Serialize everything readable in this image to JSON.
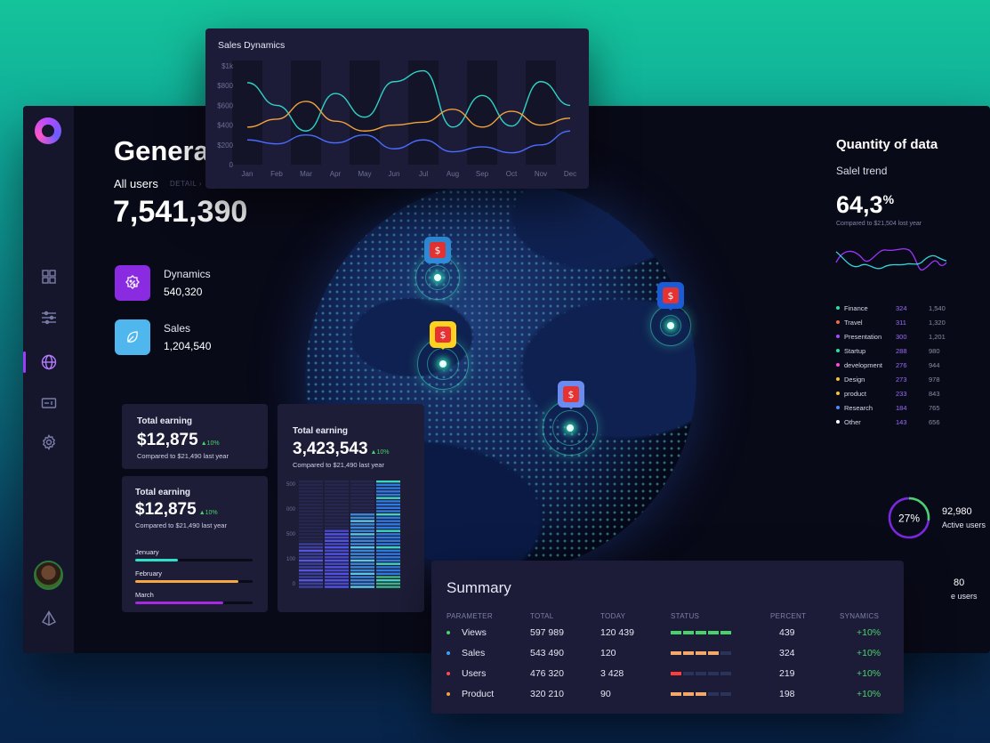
{
  "page": {
    "title": "General",
    "all_users_label": "All users",
    "detail_label": "DETAIL",
    "all_users_value": "7,541,390"
  },
  "sidebar": {
    "items": [
      {
        "icon": "dashboard-icon"
      },
      {
        "icon": "sliders-icon"
      },
      {
        "icon": "globe-icon",
        "active": true
      },
      {
        "icon": "id-card-icon"
      },
      {
        "icon": "gear-icon"
      }
    ],
    "footer_icon": "prism-icon"
  },
  "stats": [
    {
      "label": "Dynamics",
      "value": "540,320",
      "color": "#8a2be2",
      "icon": "percent-badge-icon"
    },
    {
      "label": "Sales",
      "value": "1,204,540",
      "color": "#4fb6ee",
      "icon": "leaf-icon"
    }
  ],
  "earning_cards": [
    {
      "title": "Total earning",
      "value": "$12,875",
      "growth": "▲10%",
      "compare": "Compared to $21,490 last year"
    },
    {
      "title": "Total earning",
      "value": "$12,875",
      "growth": "▲10%",
      "compare": "Compared to $21,490 last year",
      "bars": [
        {
          "label": "Jenuary",
          "progress": 0.36,
          "color": "#2ee0c8"
        },
        {
          "label": "February",
          "progress": 0.88,
          "color": "#f4a742"
        },
        {
          "label": "March",
          "progress": 0.75,
          "color": "#a72ae0"
        }
      ]
    },
    {
      "title": "Total earning",
      "value": "3,423,543",
      "growth": "▲10%",
      "compare": "Compared to $21,490 last year"
    }
  ],
  "heatmap_axis": [
    "1500",
    "1000",
    "500",
    "100",
    "0"
  ],
  "map_pins": [
    {
      "symbol": "$",
      "color": "#2f8ad8"
    },
    {
      "symbol": "$",
      "color": "#ffd21f"
    },
    {
      "symbol": "$",
      "color": "#1a5cd8"
    },
    {
      "symbol": "$",
      "color": "#6a8cf0"
    }
  ],
  "sales_dynamics": {
    "title": "Sales Dynamics"
  },
  "chart_data": {
    "type": "line",
    "title": "Sales Dynamics",
    "categories": [
      "Jan",
      "Feb",
      "Mar",
      "Apr",
      "May",
      "Jun",
      "Jul",
      "Aug",
      "Sep",
      "Oct",
      "Nov",
      "Dec"
    ],
    "yticks": [
      "$1k",
      "$800",
      "$600",
      "$400",
      "$200",
      "0"
    ],
    "ylim": [
      0,
      1000
    ],
    "series": [
      {
        "color": "#2fd3c4",
        "values": [
          830,
          600,
          340,
          720,
          480,
          840,
          950,
          380,
          700,
          390,
          840,
          600
        ]
      },
      {
        "color": "#f3a23c",
        "values": [
          380,
          460,
          640,
          440,
          340,
          400,
          430,
          560,
          380,
          540,
          400,
          470
        ]
      },
      {
        "color": "#4a6cff",
        "values": [
          250,
          210,
          300,
          220,
          300,
          160,
          250,
          130,
          180,
          120,
          200,
          340
        ]
      }
    ]
  },
  "quantity": {
    "title": "Quantity of data",
    "subtitle": "Salel trend",
    "percent": "64,3",
    "percent_sign": "%",
    "compare": "Compared to $21,504 lost year",
    "legend": [
      {
        "name": "Finance",
        "a": "324",
        "b": "1,540",
        "color": "#2ee0a0"
      },
      {
        "name": "Travel",
        "a": "311",
        "b": "1,320",
        "color": "#f06b4a"
      },
      {
        "name": "Presentation",
        "a": "300",
        "b": "1,201",
        "color": "#a04bff"
      },
      {
        "name": "Startup",
        "a": "288",
        "b": "980",
        "color": "#2ee0a0"
      },
      {
        "name": "development",
        "a": "276",
        "b": "944",
        "color": "#ff4bd0"
      },
      {
        "name": "Design",
        "a": "273",
        "b": "978",
        "color": "#f3c33c"
      },
      {
        "name": "product",
        "a": "233",
        "b": "843",
        "color": "#f3c33c"
      },
      {
        "name": "Research",
        "a": "184",
        "b": "765",
        "color": "#4a8cff"
      },
      {
        "name": "Other",
        "a": "143",
        "b": "656",
        "color": "#ffffff"
      }
    ]
  },
  "active": {
    "percent_label": "27%",
    "percent": 0.27,
    "value": "92,980",
    "label": "Active users",
    "value2": "80",
    "label2": "e users"
  },
  "summary": {
    "title": "Summary",
    "headers": [
      "PARAMETER",
      "TOTAL",
      "TODAY",
      "STATUS",
      "PERCENT",
      "SYNAMICS"
    ],
    "rows": [
      {
        "name": "Views",
        "total": "597 989",
        "today": "120 439",
        "percent": "439",
        "dyn": "+10%",
        "dot": "#48d36a",
        "status_color": "#48d36a",
        "status": 5
      },
      {
        "name": "Sales",
        "total": "543 490",
        "today": "120",
        "percent": "324",
        "dyn": "+10%",
        "dot": "#3aa0ff",
        "status_color": "#f3a96a",
        "status": 4
      },
      {
        "name": "Users",
        "total": "476 320",
        "today": "3 428",
        "percent": "219",
        "dyn": "+10%",
        "dot": "#ff4a4a",
        "status_color": "#ff3b3b",
        "status": 1
      },
      {
        "name": "Product",
        "total": "320 210",
        "today": "90",
        "percent": "198",
        "dyn": "+10%",
        "dot": "#f3a23c",
        "status_color": "#f3a96a",
        "status": 3
      }
    ]
  }
}
